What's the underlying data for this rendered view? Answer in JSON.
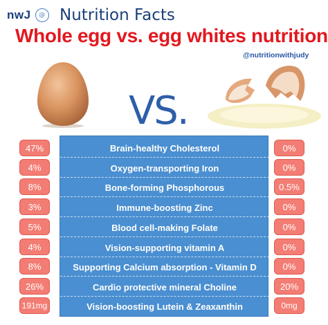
{
  "header": {
    "logo_text": "nwJ",
    "logo_badge": "@",
    "brand": "Nutrition Facts",
    "title": "Whole egg vs. egg whites nutrition",
    "handle": "@nutritionwithjudy"
  },
  "images": {
    "left": "whole-egg",
    "right": "cracked-egg-whites"
  },
  "vs_label": "VS.",
  "colors": {
    "title_red": "#e3181f",
    "navy": "#1a3f7a",
    "panel_blue": "#4a8fd1",
    "cell_salmon": "#f37d74"
  },
  "rows": [
    {
      "label": "Brain-healthy Cholesterol",
      "whole": "47%",
      "white": "0%"
    },
    {
      "label": "Oxygen-transporting Iron",
      "whole": "4%",
      "white": "0%"
    },
    {
      "label": "Bone-forming Phosphorous",
      "whole": "8%",
      "white": "0.5%"
    },
    {
      "label": "Immune-boosting Zinc",
      "whole": "3%",
      "white": "0%"
    },
    {
      "label": "Blood cell-making  Folate",
      "whole": "5%",
      "white": "0%"
    },
    {
      "label": "Vision-supporting vitamin A",
      "whole": "4%",
      "white": "0%"
    },
    {
      "label": "Supporting Calcium absorption - Vitamin D",
      "whole": "8%",
      "white": "0%"
    },
    {
      "label": "Cardio protective mineral  Choline",
      "whole": "26%",
      "white": "20%"
    },
    {
      "label": "Vision-boosting  Lutein & Zeaxanthin",
      "whole": "191mg",
      "white": "0mg"
    }
  ]
}
